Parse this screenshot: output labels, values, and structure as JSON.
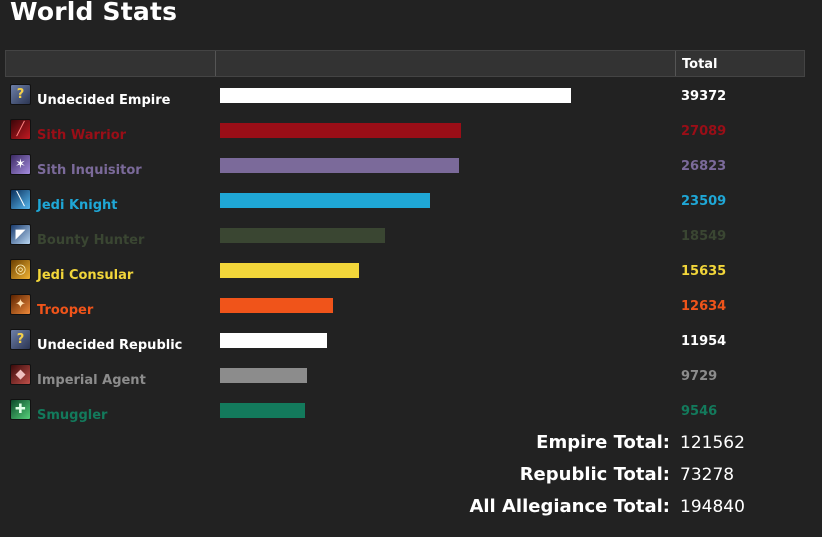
{
  "page_title": "World Stats",
  "table_header": {
    "total_label": "Total"
  },
  "chart_data": {
    "type": "bar",
    "categories": [
      "Undecided Empire",
      "Sith Warrior",
      "Sith Inquisitor",
      "Jedi Knight",
      "Bounty Hunter",
      "Jedi Consular",
      "Trooper",
      "Undecided Republic",
      "Imperial Agent",
      "Smuggler"
    ],
    "values": [
      39372,
      27089,
      26823,
      23509,
      18549,
      15635,
      12634,
      11954,
      9729,
      9546
    ],
    "colors": [
      "#ffffff",
      "#9a0e17",
      "#7b6a9a",
      "#1fa7d6",
      "#3a4632",
      "#f2d63a",
      "#f0541a",
      "#ffffff",
      "#8c8c8c",
      "#137a5c"
    ],
    "icons": [
      "question-icon",
      "sith-warrior-icon",
      "sith-inquisitor-icon",
      "jedi-knight-icon",
      "bounty-hunter-icon",
      "jedi-consular-icon",
      "trooper-icon",
      "question-icon",
      "imperial-agent-icon",
      "smuggler-icon"
    ],
    "title": "World Stats",
    "xlabel": "",
    "ylabel": "Total",
    "xlim": [
      0,
      39372
    ]
  },
  "totals": [
    {
      "label": "Empire Total:",
      "value": "121562"
    },
    {
      "label": "Republic Total:",
      "value": "73278"
    },
    {
      "label": "All Allegiance Total:",
      "value": "194840"
    }
  ]
}
